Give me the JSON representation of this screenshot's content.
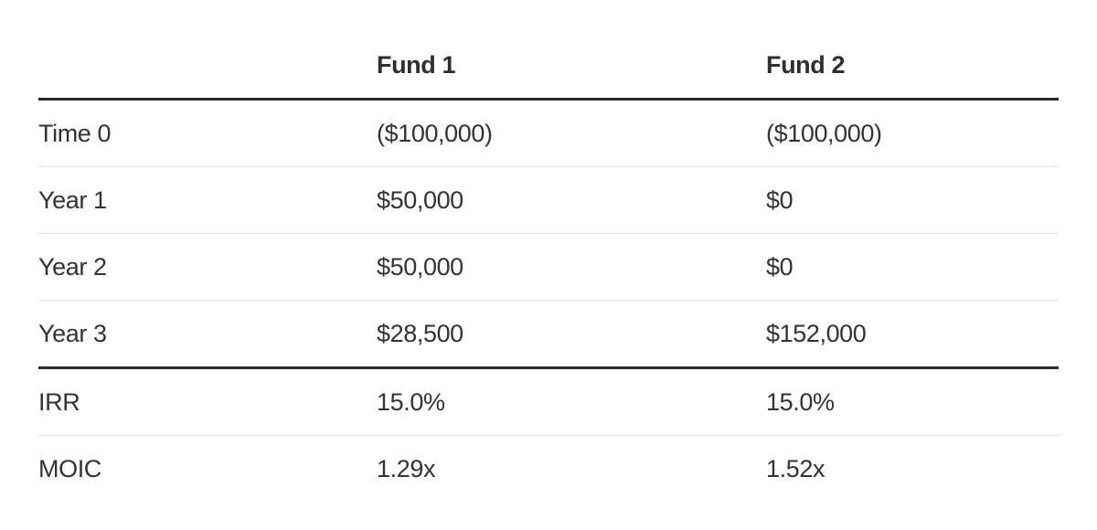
{
  "colors": {
    "background": "#ffffff",
    "text": "#333333",
    "heavy_rule": "#2b2b2b",
    "light_rule": "#e3e3e3"
  },
  "table": {
    "headers": {
      "spacer": "",
      "fund1": "Fund 1",
      "fund2": "Fund 2"
    },
    "cashflow_rows": [
      {
        "label": "Time 0",
        "fund1": "($100,000)",
        "fund2": "($100,000)"
      },
      {
        "label": "Year 1",
        "fund1": "$50,000",
        "fund2": "$0"
      },
      {
        "label": "Year 2",
        "fund1": "$50,000",
        "fund2": "$0"
      },
      {
        "label": "Year 3",
        "fund1": "$28,500",
        "fund2": "$152,000"
      }
    ],
    "metric_rows": [
      {
        "label": "IRR",
        "fund1": "15.0%",
        "fund2": "15.0%"
      },
      {
        "label": "MOIC",
        "fund1": "1.29x",
        "fund2": "1.52x"
      }
    ]
  }
}
